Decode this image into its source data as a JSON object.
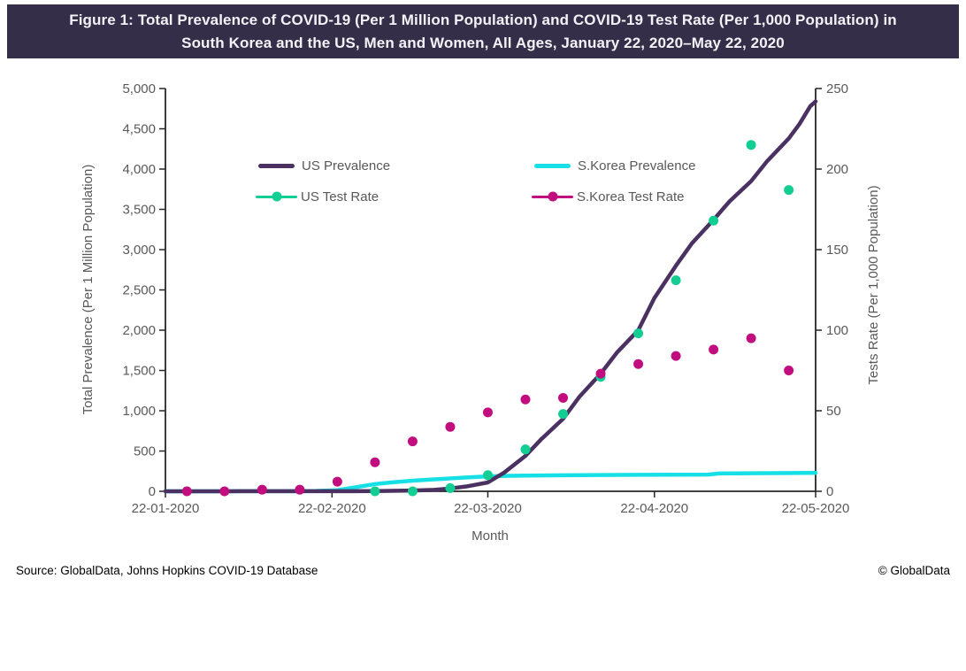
{
  "title_bar": {
    "line1": "Figure 1: Total Prevalence of COVID-19 (Per 1 Million Population) and COVID-19 Test Rate (Per 1,000 Population) in",
    "line2": "South Korea and the US, Men and Women, All Ages, January 22, 2020–May 22, 2020"
  },
  "footer": {
    "source": "Source: GlobalData, Johns Hopkins COVID-19 Database",
    "copyright": "© GlobalData"
  },
  "colors": {
    "title_bar_bg": "#342E49",
    "title_bar_text": "#F4F2F7",
    "axis": "#262626",
    "chart_text": "#595959",
    "us_prevalence": "#4A3162",
    "skorea_prevalence": "#16E0E6",
    "us_test_rate": "#12CE93",
    "skorea_test_rate": "#C20D7F"
  },
  "chart_data": {
    "type": "line+scatter",
    "title": "Total Prevalence of COVID-19 (Per 1 Million Population) and COVID-19 Test Rate (Per 1,000 Population) in South Korea and the US, Jan 22 2020 - May 22 2020",
    "x_axis": {
      "label": "Month",
      "tick_labels": [
        "22-01-2020",
        "22-02-2020",
        "22-03-2020",
        "22-04-2020",
        "22-05-2020"
      ],
      "tick_days": [
        0,
        31,
        60,
        91,
        121
      ],
      "range_days": [
        0,
        121
      ],
      "note": "x values below are day offsets from 22-01-2020; scatter points are weekly (Sundays 26-01-2020 through 17-05-2020)"
    },
    "y_axis_left": {
      "label": "Total Prevalence (Per 1 Million Population)",
      "ticks": [
        "0",
        "500",
        "1,000",
        "1,500",
        "2,000",
        "2,500",
        "3,000",
        "3,500",
        "4,000",
        "4,500",
        "5,000"
      ],
      "min": 0,
      "max": 5000
    },
    "y_axis_right": {
      "label": "Tests Rate  (Per 1,000 Population)",
      "ticks": [
        "0",
        "50",
        "100",
        "150",
        "200",
        "250"
      ],
      "min": 0,
      "max": 250
    },
    "legend": {
      "position": "top",
      "grid": "off"
    },
    "series": [
      {
        "name": "S.Korea Prevalence",
        "type": "line",
        "axis": "left",
        "color": "#16E0E6",
        "points": [
          [
            0,
            0
          ],
          [
            7,
            0
          ],
          [
            14,
            1
          ],
          [
            21,
            1
          ],
          [
            25,
            2
          ],
          [
            28,
            4
          ],
          [
            32,
            14
          ],
          [
            35,
            45
          ],
          [
            39,
            90
          ],
          [
            42,
            110
          ],
          [
            46,
            132
          ],
          [
            50,
            148
          ],
          [
            53,
            160
          ],
          [
            56,
            172
          ],
          [
            60,
            186
          ],
          [
            63,
            191
          ],
          [
            67,
            195
          ],
          [
            74,
            199
          ],
          [
            81,
            202
          ],
          [
            88,
            204
          ],
          [
            95,
            206
          ],
          [
            101,
            207
          ],
          [
            103,
            221
          ],
          [
            109,
            224
          ],
          [
            116,
            227
          ],
          [
            121,
            230
          ]
        ]
      },
      {
        "name": "US Prevalence",
        "type": "line",
        "axis": "left",
        "color": "#4A3162",
        "points": [
          [
            0,
            0
          ],
          [
            7,
            0
          ],
          [
            14,
            1
          ],
          [
            21,
            1
          ],
          [
            28,
            1
          ],
          [
            35,
            2
          ],
          [
            39,
            3
          ],
          [
            46,
            9
          ],
          [
            50,
            18
          ],
          [
            53,
            35
          ],
          [
            56,
            60
          ],
          [
            60,
            110
          ],
          [
            63,
            230
          ],
          [
            67,
            440
          ],
          [
            70,
            650
          ],
          [
            74,
            900
          ],
          [
            77,
            1170
          ],
          [
            81,
            1460
          ],
          [
            84,
            1720
          ],
          [
            88,
            2000
          ],
          [
            91,
            2400
          ],
          [
            95,
            2800
          ],
          [
            98,
            3080
          ],
          [
            102,
            3370
          ],
          [
            105,
            3600
          ],
          [
            109,
            3850
          ],
          [
            112,
            4100
          ],
          [
            116,
            4380
          ],
          [
            118,
            4560
          ],
          [
            120,
            4780
          ],
          [
            121,
            4840
          ]
        ]
      },
      {
        "name": "US Test Rate",
        "type": "scatter",
        "axis": "right",
        "color": "#12CE93",
        "points": [
          [
            39,
            0
          ],
          [
            46,
            0
          ],
          [
            53,
            2
          ],
          [
            60,
            10
          ],
          [
            67,
            26
          ],
          [
            74,
            48
          ],
          [
            81,
            71
          ],
          [
            88,
            98
          ],
          [
            95,
            131
          ],
          [
            102,
            168
          ],
          [
            109,
            215
          ],
          [
            116,
            187
          ]
        ]
      },
      {
        "name": "S.Korea Test Rate",
        "type": "scatter",
        "axis": "right",
        "color": "#C20D7F",
        "points": [
          [
            4,
            0
          ],
          [
            11,
            0
          ],
          [
            18,
            1
          ],
          [
            25,
            1
          ],
          [
            32,
            6
          ],
          [
            39,
            18
          ],
          [
            46,
            31
          ],
          [
            53,
            40
          ],
          [
            60,
            49
          ],
          [
            67,
            57
          ],
          [
            74,
            58
          ],
          [
            81,
            73
          ],
          [
            88,
            79
          ],
          [
            95,
            84
          ],
          [
            102,
            88
          ],
          [
            109,
            95
          ],
          [
            116,
            75
          ]
        ]
      }
    ]
  }
}
